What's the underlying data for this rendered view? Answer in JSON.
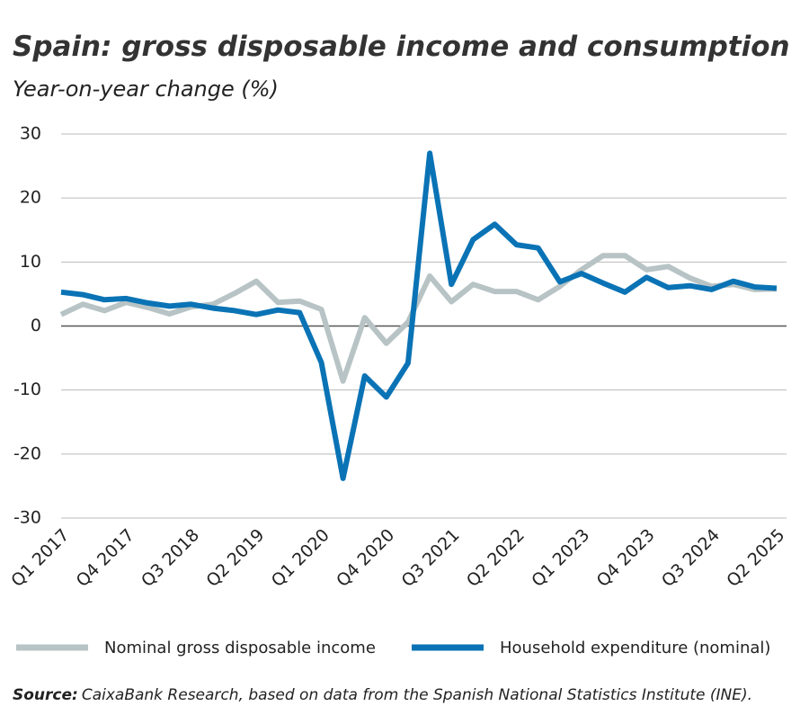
{
  "chart_data": {
    "type": "line",
    "title": "Spain: gross disposable income and consumption",
    "subtitle": "Year-on-year change (%)",
    "categories": [
      "Q1 2017",
      null,
      null,
      "Q4 2017",
      null,
      null,
      "Q3 2018",
      null,
      null,
      "Q2 2019",
      null,
      null,
      "Q1 2020",
      null,
      null,
      "Q4 2020",
      null,
      null,
      "Q3 2021",
      null,
      null,
      "Q2 2022",
      null,
      null,
      "Q1 2023",
      null,
      null,
      "Q4 2023",
      null,
      null,
      "Q3 2024",
      null,
      null,
      "Q2 2025"
    ],
    "series": [
      {
        "name": "Nominal gross disposable income",
        "color": "#b7c3c4",
        "values": [
          1.8,
          3.4,
          2.4,
          3.7,
          2.9,
          1.9,
          3.0,
          3.4,
          5.1,
          7.0,
          3.7,
          3.9,
          2.6,
          -8.6,
          1.3,
          -2.7,
          0.6,
          7.8,
          3.8,
          6.5,
          5.4,
          5.4,
          4.1,
          6.2,
          8.8,
          11.0,
          11.0,
          8.8,
          9.3,
          7.5,
          6.2,
          6.5,
          5.7,
          5.8
        ]
      },
      {
        "name": "Household expenditure (nominal)",
        "color": "#0a73b5",
        "values": [
          5.3,
          4.9,
          4.1,
          4.3,
          3.6,
          3.1,
          3.4,
          2.8,
          2.4,
          1.8,
          2.5,
          2.1,
          -5.7,
          -23.8,
          -7.8,
          -11.1,
          -5.8,
          27.0,
          6.5,
          13.5,
          15.9,
          12.7,
          12.2,
          6.9,
          8.2,
          6.7,
          5.3,
          7.6,
          6.0,
          6.3,
          5.7,
          7.0,
          6.1,
          5.9
        ]
      }
    ],
    "ylim": [
      -30,
      30
    ],
    "yticks": [
      -30,
      -20,
      -10,
      0,
      10,
      20,
      30
    ],
    "grid": true,
    "source_label": "Source:",
    "source_text": "CaixaBank Research, based on data from the Spanish National Statistics Institute (INE)."
  }
}
